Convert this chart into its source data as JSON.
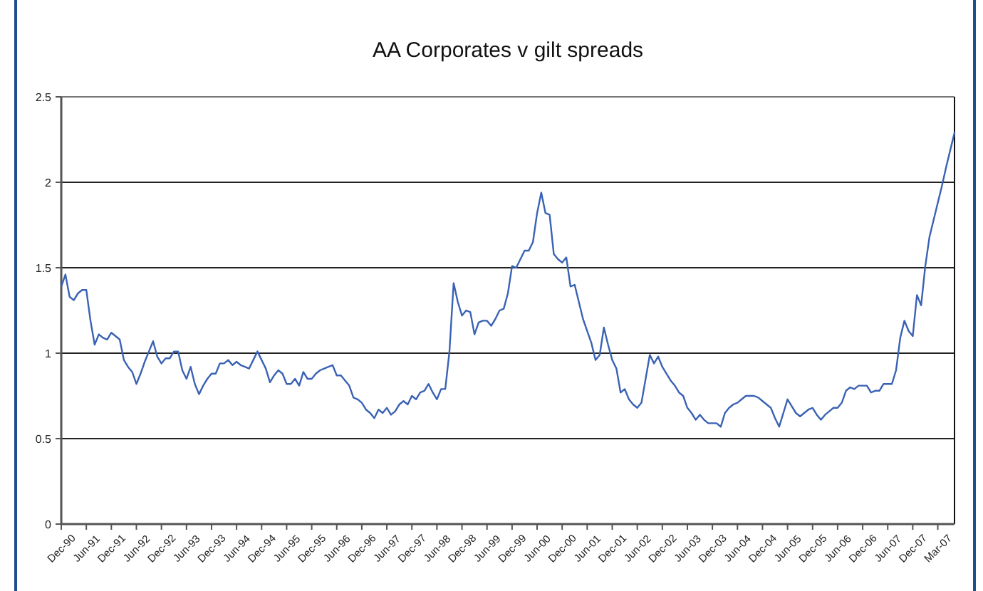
{
  "chart_data": {
    "type": "line",
    "title": "AA Corporates v gilt spreads",
    "categories": [
      "Dec-90",
      null,
      null,
      null,
      null,
      null,
      "Jun-91",
      null,
      null,
      null,
      null,
      null,
      "Dec-91",
      null,
      null,
      null,
      null,
      null,
      "Jun-92",
      null,
      null,
      null,
      null,
      null,
      "Dec-92",
      null,
      null,
      null,
      null,
      null,
      "Jun-93",
      null,
      null,
      null,
      null,
      null,
      "Dec-93",
      null,
      null,
      null,
      null,
      null,
      "Jun-94",
      null,
      null,
      null,
      null,
      null,
      "Dec-94",
      null,
      null,
      null,
      null,
      null,
      "Jun-95",
      null,
      null,
      null,
      null,
      null,
      "Dec-95",
      null,
      null,
      null,
      null,
      null,
      "Jun-96",
      null,
      null,
      null,
      null,
      null,
      "Dec-96",
      null,
      null,
      null,
      null,
      null,
      "Jun-97",
      null,
      null,
      null,
      null,
      null,
      "Dec-97",
      null,
      null,
      null,
      null,
      null,
      "Jun-98",
      null,
      null,
      null,
      null,
      null,
      "Dec-98",
      null,
      null,
      null,
      null,
      null,
      "Jun-99",
      null,
      null,
      null,
      null,
      null,
      "Dec-99",
      null,
      null,
      null,
      null,
      null,
      "Jun-00",
      null,
      null,
      null,
      null,
      null,
      "Dec-00",
      null,
      null,
      null,
      null,
      null,
      "Jun-01",
      null,
      null,
      null,
      null,
      null,
      "Dec-01",
      null,
      null,
      null,
      null,
      null,
      "Jun-02",
      null,
      null,
      null,
      null,
      null,
      "Dec-02",
      null,
      null,
      null,
      null,
      null,
      "Jun-03",
      null,
      null,
      null,
      null,
      null,
      "Dec-03",
      null,
      null,
      null,
      null,
      null,
      "Jun-04",
      null,
      null,
      null,
      null,
      null,
      "Dec-04",
      null,
      null,
      null,
      null,
      null,
      "Jun-05",
      null,
      null,
      null,
      null,
      null,
      "Dec-05",
      null,
      null,
      null,
      null,
      null,
      "Jun-06",
      null,
      null,
      null,
      null,
      null,
      "Dec-06",
      null,
      null,
      null,
      null,
      null,
      "Jun-07",
      null,
      null,
      null,
      null,
      null,
      "Dec-07",
      null,
      null,
      null,
      null,
      null,
      "Mar-07",
      null,
      null,
      null,
      null
    ],
    "series": [
      {
        "color": "#3a62b4",
        "values": [
          1.39,
          1.46,
          1.33,
          1.31,
          1.35,
          1.37,
          1.37,
          1.19,
          1.05,
          1.11,
          1.09,
          1.08,
          1.12,
          1.1,
          1.08,
          0.96,
          0.92,
          0.89,
          0.82,
          0.88,
          0.95,
          1.01,
          1.07,
          0.98,
          0.94,
          0.97,
          0.97,
          1.01,
          1.01,
          0.9,
          0.85,
          0.92,
          0.82,
          0.76,
          0.81,
          0.85,
          0.88,
          0.88,
          0.94,
          0.94,
          0.96,
          0.93,
          0.95,
          0.93,
          0.92,
          0.91,
          0.96,
          1.01,
          0.96,
          0.91,
          0.83,
          0.87,
          0.9,
          0.88,
          0.82,
          0.82,
          0.85,
          0.81,
          0.89,
          0.85,
          0.85,
          0.88,
          0.9,
          0.91,
          0.92,
          0.93,
          0.87,
          0.87,
          0.84,
          0.81,
          0.74,
          0.73,
          0.71,
          0.67,
          0.65,
          0.62,
          0.67,
          0.65,
          0.68,
          0.64,
          0.66,
          0.7,
          0.72,
          0.7,
          0.75,
          0.73,
          0.77,
          0.78,
          0.82,
          0.77,
          0.73,
          0.79,
          0.79,
          1.01,
          1.41,
          1.3,
          1.22,
          1.25,
          1.24,
          1.11,
          1.18,
          1.19,
          1.19,
          1.16,
          1.2,
          1.25,
          1.26,
          1.35,
          1.51,
          1.5,
          1.55,
          1.6,
          1.6,
          1.65,
          1.82,
          1.94,
          1.82,
          1.81,
          1.58,
          1.55,
          1.53,
          1.56,
          1.39,
          1.4,
          1.3,
          1.2,
          1.13,
          1.06,
          0.96,
          0.99,
          1.15,
          1.05,
          0.96,
          0.91,
          0.77,
          0.79,
          0.73,
          0.7,
          0.68,
          0.71,
          0.85,
          0.99,
          0.94,
          0.98,
          0.92,
          0.88,
          0.84,
          0.81,
          0.77,
          0.75,
          0.68,
          0.65,
          0.61,
          0.64,
          0.61,
          0.59,
          0.59,
          0.59,
          0.57,
          0.65,
          0.68,
          0.7,
          0.71,
          0.73,
          0.75,
          0.75,
          0.75,
          0.74,
          0.72,
          0.7,
          0.68,
          0.62,
          0.57,
          0.65,
          0.73,
          0.69,
          0.65,
          0.63,
          0.65,
          0.67,
          0.68,
          0.64,
          0.61,
          0.64,
          0.66,
          0.68,
          0.68,
          0.71,
          0.78,
          0.8,
          0.79,
          0.81,
          0.81,
          0.81,
          0.77,
          0.78,
          0.78,
          0.82,
          0.82,
          0.82,
          0.9,
          1.09,
          1.19,
          1.13,
          1.1,
          1.34,
          1.28,
          1.51,
          1.68,
          1.78,
          1.88,
          1.98,
          2.09,
          2.19,
          2.29
        ]
      }
    ],
    "ylim": [
      0,
      2.5
    ],
    "yticks": [
      0,
      0.5,
      1,
      1.5,
      2,
      2.5
    ],
    "grid": "y",
    "marker": "none",
    "line_style": "solid"
  }
}
